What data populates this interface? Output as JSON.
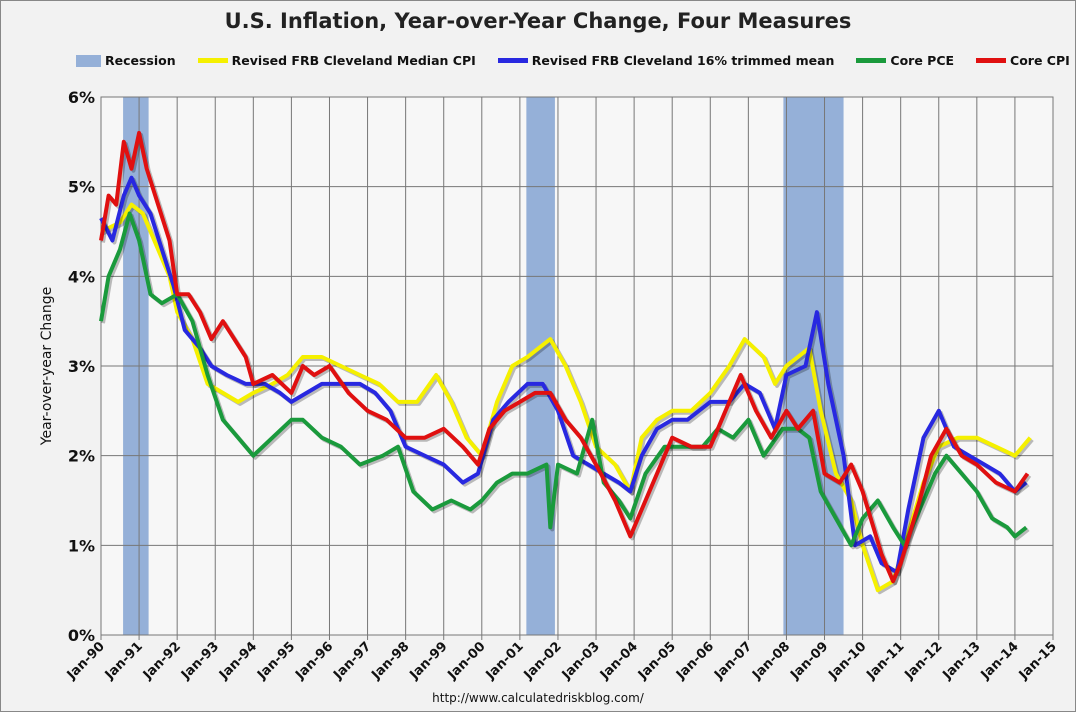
{
  "chart_data": {
    "type": "line",
    "title": "U.S. Inflation, Year-over-Year Change, Four Measures",
    "ylabel": "Year-over-year Change",
    "xlabel": "",
    "ylim": [
      0,
      6
    ],
    "xlim": [
      1990,
      2015
    ],
    "grid": true,
    "legend_placement": "top",
    "yticks": [
      "0%",
      "1%",
      "2%",
      "3%",
      "4%",
      "5%",
      "6%"
    ],
    "xticks": [
      "Jan-90",
      "Jan-91",
      "Jan-92",
      "Jan-93",
      "Jan-94",
      "Jan-95",
      "Jan-96",
      "Jan-97",
      "Jan-98",
      "Jan-99",
      "Jan-00",
      "Jan-01",
      "Jan-02",
      "Jan-03",
      "Jan-04",
      "Jan-05",
      "Jan-06",
      "Jan-07",
      "Jan-08",
      "Jan-09",
      "Jan-10",
      "Jan-11",
      "Jan-12",
      "Jan-13",
      "Jan-14",
      "Jan-15"
    ],
    "recession": {
      "name": "Recession",
      "color": "#95b0d8",
      "periods": [
        [
          1990.58,
          1991.25
        ],
        [
          2001.17,
          2001.92
        ],
        [
          2007.92,
          2009.5
        ]
      ]
    },
    "series": [
      {
        "name": "Revised FRB Cleveland Median CPI",
        "color": "#f5f000",
        "points": [
          [
            1990.0,
            4.5
          ],
          [
            1990.5,
            4.6
          ],
          [
            1990.8,
            4.8
          ],
          [
            1991.1,
            4.7
          ],
          [
            1991.4,
            4.4
          ],
          [
            1991.8,
            4.0
          ],
          [
            1992.0,
            3.6
          ],
          [
            1992.4,
            3.3
          ],
          [
            1992.8,
            2.8
          ],
          [
            1993.2,
            2.7
          ],
          [
            1993.6,
            2.6
          ],
          [
            1994.0,
            2.7
          ],
          [
            1994.5,
            2.8
          ],
          [
            1994.9,
            2.9
          ],
          [
            1995.3,
            3.1
          ],
          [
            1995.8,
            3.1
          ],
          [
            1996.3,
            3.0
          ],
          [
            1996.8,
            2.9
          ],
          [
            1997.3,
            2.8
          ],
          [
            1997.8,
            2.6
          ],
          [
            1998.3,
            2.6
          ],
          [
            1998.8,
            2.9
          ],
          [
            1999.2,
            2.6
          ],
          [
            1999.6,
            2.2
          ],
          [
            2000.0,
            2.0
          ],
          [
            2000.4,
            2.6
          ],
          [
            2000.8,
            3.0
          ],
          [
            2001.2,
            3.1
          ],
          [
            2001.8,
            3.3
          ],
          [
            2002.2,
            3.0
          ],
          [
            2002.6,
            2.6
          ],
          [
            2003.0,
            2.1
          ],
          [
            2003.5,
            1.9
          ],
          [
            2003.9,
            1.6
          ],
          [
            2004.2,
            2.2
          ],
          [
            2004.6,
            2.4
          ],
          [
            2005.0,
            2.5
          ],
          [
            2005.5,
            2.5
          ],
          [
            2006.0,
            2.7
          ],
          [
            2006.5,
            3.0
          ],
          [
            2006.9,
            3.3
          ],
          [
            2007.4,
            3.1
          ],
          [
            2007.7,
            2.8
          ],
          [
            2008.0,
            3.0
          ],
          [
            2008.6,
            3.2
          ],
          [
            2008.9,
            2.5
          ],
          [
            2009.3,
            1.8
          ],
          [
            2009.7,
            1.5
          ],
          [
            2010.0,
            1.0
          ],
          [
            2010.4,
            0.5
          ],
          [
            2010.8,
            0.6
          ],
          [
            2011.1,
            1.0
          ],
          [
            2011.6,
            1.7
          ],
          [
            2012.0,
            2.1
          ],
          [
            2012.5,
            2.2
          ],
          [
            2013.0,
            2.2
          ],
          [
            2013.5,
            2.1
          ],
          [
            2014.0,
            2.0
          ],
          [
            2014.4,
            2.2
          ]
        ]
      },
      {
        "name": "Revised FRB Cleveland 16% trimmed mean",
        "color": "#2828e0",
        "points": [
          [
            1990.0,
            4.65
          ],
          [
            1990.3,
            4.4
          ],
          [
            1990.6,
            4.9
          ],
          [
            1990.8,
            5.1
          ],
          [
            1991.0,
            4.9
          ],
          [
            1991.3,
            4.7
          ],
          [
            1991.6,
            4.3
          ],
          [
            1991.9,
            3.9
          ],
          [
            1992.2,
            3.4
          ],
          [
            1992.6,
            3.2
          ],
          [
            1992.9,
            3.0
          ],
          [
            1993.3,
            2.9
          ],
          [
            1993.8,
            2.8
          ],
          [
            1994.3,
            2.8
          ],
          [
            1994.7,
            2.7
          ],
          [
            1995.0,
            2.6
          ],
          [
            1995.4,
            2.7
          ],
          [
            1995.8,
            2.8
          ],
          [
            1996.3,
            2.8
          ],
          [
            1996.8,
            2.8
          ],
          [
            1997.2,
            2.7
          ],
          [
            1997.6,
            2.5
          ],
          [
            1998.0,
            2.1
          ],
          [
            1998.5,
            2.0
          ],
          [
            1999.0,
            1.9
          ],
          [
            1999.5,
            1.7
          ],
          [
            1999.9,
            1.8
          ],
          [
            2000.3,
            2.4
          ],
          [
            2000.7,
            2.6
          ],
          [
            2001.2,
            2.8
          ],
          [
            2001.6,
            2.8
          ],
          [
            2002.0,
            2.5
          ],
          [
            2002.4,
            2.0
          ],
          [
            2002.8,
            1.9
          ],
          [
            2003.2,
            1.8
          ],
          [
            2003.6,
            1.7
          ],
          [
            2003.9,
            1.6
          ],
          [
            2004.2,
            2.0
          ],
          [
            2004.6,
            2.3
          ],
          [
            2005.0,
            2.4
          ],
          [
            2005.4,
            2.4
          ],
          [
            2006.0,
            2.6
          ],
          [
            2006.5,
            2.6
          ],
          [
            2006.9,
            2.8
          ],
          [
            2007.3,
            2.7
          ],
          [
            2007.7,
            2.3
          ],
          [
            2008.0,
            2.9
          ],
          [
            2008.5,
            3.0
          ],
          [
            2008.8,
            3.6
          ],
          [
            2009.1,
            2.8
          ],
          [
            2009.5,
            2.0
          ],
          [
            2009.8,
            1.0
          ],
          [
            2010.2,
            1.1
          ],
          [
            2010.5,
            0.8
          ],
          [
            2010.9,
            0.7
          ],
          [
            2011.2,
            1.4
          ],
          [
            2011.6,
            2.2
          ],
          [
            2012.0,
            2.5
          ],
          [
            2012.4,
            2.1
          ],
          [
            2012.8,
            2.0
          ],
          [
            2013.2,
            1.9
          ],
          [
            2013.6,
            1.8
          ],
          [
            2014.0,
            1.6
          ],
          [
            2014.3,
            1.7
          ]
        ]
      },
      {
        "name": "Core PCE",
        "color": "#1a9a3c",
        "points": [
          [
            1990.0,
            3.5
          ],
          [
            1990.2,
            4.0
          ],
          [
            1990.5,
            4.3
          ],
          [
            1990.75,
            4.7
          ],
          [
            1991.0,
            4.4
          ],
          [
            1991.3,
            3.8
          ],
          [
            1991.6,
            3.7
          ],
          [
            1992.0,
            3.8
          ],
          [
            1992.4,
            3.5
          ],
          [
            1992.8,
            2.9
          ],
          [
            1993.2,
            2.4
          ],
          [
            1993.6,
            2.2
          ],
          [
            1994.0,
            2.0
          ],
          [
            1994.5,
            2.2
          ],
          [
            1995.0,
            2.4
          ],
          [
            1995.3,
            2.4
          ],
          [
            1995.8,
            2.2
          ],
          [
            1996.3,
            2.1
          ],
          [
            1996.8,
            1.9
          ],
          [
            1997.4,
            2.0
          ],
          [
            1997.8,
            2.1
          ],
          [
            1998.2,
            1.6
          ],
          [
            1998.7,
            1.4
          ],
          [
            1999.2,
            1.5
          ],
          [
            1999.7,
            1.4
          ],
          [
            2000.0,
            1.5
          ],
          [
            2000.4,
            1.7
          ],
          [
            2000.8,
            1.8
          ],
          [
            2001.2,
            1.8
          ],
          [
            2001.7,
            1.9
          ],
          [
            2001.8,
            1.2
          ],
          [
            2002.0,
            1.9
          ],
          [
            2002.5,
            1.8
          ],
          [
            2002.9,
            2.4
          ],
          [
            2003.2,
            1.7
          ],
          [
            2003.6,
            1.5
          ],
          [
            2003.9,
            1.3
          ],
          [
            2004.3,
            1.8
          ],
          [
            2004.8,
            2.1
          ],
          [
            2005.3,
            2.1
          ],
          [
            2005.8,
            2.1
          ],
          [
            2006.2,
            2.3
          ],
          [
            2006.6,
            2.2
          ],
          [
            2007.0,
            2.4
          ],
          [
            2007.4,
            2.0
          ],
          [
            2007.9,
            2.3
          ],
          [
            2008.3,
            2.3
          ],
          [
            2008.6,
            2.2
          ],
          [
            2008.9,
            1.6
          ],
          [
            2009.3,
            1.3
          ],
          [
            2009.7,
            1.0
          ],
          [
            2010.0,
            1.3
          ],
          [
            2010.4,
            1.5
          ],
          [
            2010.8,
            1.2
          ],
          [
            2011.1,
            1.0
          ],
          [
            2011.5,
            1.4
          ],
          [
            2011.9,
            1.8
          ],
          [
            2012.2,
            2.0
          ],
          [
            2012.6,
            1.8
          ],
          [
            2013.0,
            1.6
          ],
          [
            2013.4,
            1.3
          ],
          [
            2013.8,
            1.2
          ],
          [
            2014.0,
            1.1
          ],
          [
            2014.3,
            1.2
          ]
        ]
      },
      {
        "name": "Core CPI",
        "color": "#e01010",
        "points": [
          [
            1990.0,
            4.4
          ],
          [
            1990.2,
            4.9
          ],
          [
            1990.4,
            4.8
          ],
          [
            1990.6,
            5.5
          ],
          [
            1990.8,
            5.2
          ],
          [
            1991.0,
            5.6
          ],
          [
            1991.2,
            5.2
          ],
          [
            1991.5,
            4.8
          ],
          [
            1991.8,
            4.4
          ],
          [
            1992.0,
            3.8
          ],
          [
            1992.3,
            3.8
          ],
          [
            1992.6,
            3.6
          ],
          [
            1992.9,
            3.3
          ],
          [
            1993.2,
            3.5
          ],
          [
            1993.5,
            3.3
          ],
          [
            1993.8,
            3.1
          ],
          [
            1994.0,
            2.8
          ],
          [
            1994.5,
            2.9
          ],
          [
            1995.0,
            2.7
          ],
          [
            1995.3,
            3.0
          ],
          [
            1995.6,
            2.9
          ],
          [
            1996.0,
            3.0
          ],
          [
            1996.5,
            2.7
          ],
          [
            1997.0,
            2.5
          ],
          [
            1997.5,
            2.4
          ],
          [
            1998.0,
            2.2
          ],
          [
            1998.5,
            2.2
          ],
          [
            1999.0,
            2.3
          ],
          [
            1999.5,
            2.1
          ],
          [
            1999.9,
            1.9
          ],
          [
            2000.2,
            2.3
          ],
          [
            2000.6,
            2.5
          ],
          [
            2001.0,
            2.6
          ],
          [
            2001.4,
            2.7
          ],
          [
            2001.8,
            2.7
          ],
          [
            2002.2,
            2.4
          ],
          [
            2002.6,
            2.2
          ],
          [
            2003.0,
            1.9
          ],
          [
            2003.5,
            1.5
          ],
          [
            2003.9,
            1.1
          ],
          [
            2004.2,
            1.4
          ],
          [
            2004.6,
            1.8
          ],
          [
            2005.0,
            2.2
          ],
          [
            2005.5,
            2.1
          ],
          [
            2006.0,
            2.1
          ],
          [
            2006.5,
            2.6
          ],
          [
            2006.8,
            2.9
          ],
          [
            2007.2,
            2.5
          ],
          [
            2007.6,
            2.2
          ],
          [
            2008.0,
            2.5
          ],
          [
            2008.3,
            2.3
          ],
          [
            2008.7,
            2.5
          ],
          [
            2009.0,
            1.8
          ],
          [
            2009.4,
            1.7
          ],
          [
            2009.7,
            1.9
          ],
          [
            2010.0,
            1.6
          ],
          [
            2010.5,
            0.9
          ],
          [
            2010.8,
            0.6
          ],
          [
            2011.0,
            0.8
          ],
          [
            2011.5,
            1.5
          ],
          [
            2011.8,
            2.0
          ],
          [
            2012.2,
            2.3
          ],
          [
            2012.6,
            2.0
          ],
          [
            2013.0,
            1.9
          ],
          [
            2013.5,
            1.7
          ],
          [
            2014.0,
            1.6
          ],
          [
            2014.33,
            1.8
          ]
        ]
      }
    ]
  },
  "source": "http://www.calculatedriskblog.com/"
}
